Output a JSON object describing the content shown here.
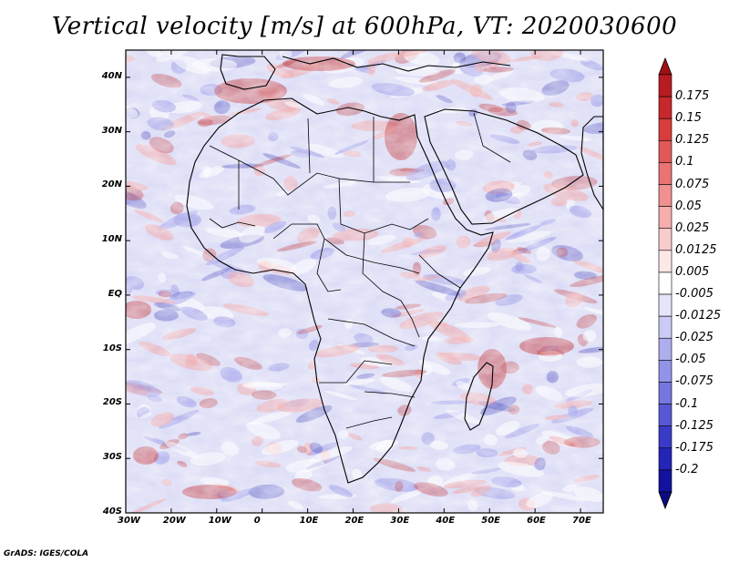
{
  "title": "Vertical velocity [m/s] at 600hPa, VT: 2020030600",
  "credit": "GrADS: IGES/COLA",
  "axes": {
    "lat_labels": [
      "40N",
      "30N",
      "20N",
      "10N",
      "EQ",
      "10S",
      "20S",
      "30S",
      "40S"
    ],
    "lon_labels": [
      "30W",
      "20W",
      "10W",
      "0",
      "10E",
      "20E",
      "30E",
      "40E",
      "50E",
      "60E",
      "70E"
    ],
    "lat_values": [
      40,
      30,
      20,
      10,
      0,
      -10,
      -20,
      -30,
      -40
    ],
    "lon_values": [
      -30,
      -20,
      -10,
      0,
      10,
      20,
      30,
      40,
      50,
      60,
      70
    ],
    "lon_range": [
      -30,
      75
    ],
    "lat_range": [
      -40,
      45
    ]
  },
  "colorbar": {
    "labels": [
      "0.175",
      "0.15",
      "0.125",
      "0.1",
      "0.075",
      "0.05",
      "0.025",
      "0.0125",
      "0.005",
      "-0.005",
      "-0.0125",
      "-0.025",
      "-0.05",
      "-0.075",
      "-0.1",
      "-0.125",
      "-0.175",
      "-0.2"
    ],
    "colors": [
      "#b81c22",
      "#c8282c",
      "#d83c3c",
      "#e25858",
      "#ea7474",
      "#f09090",
      "#f5adad",
      "#f9cccc",
      "#fde8e8",
      "#ffffff",
      "#e4e4fa",
      "#cacaf4",
      "#aeaeee",
      "#9292e8",
      "#7676e0",
      "#5858d6",
      "#3a3ac8",
      "#2424b8",
      "#12129e"
    ],
    "max_color": "#a01015",
    "min_color": "#0c0c80"
  },
  "field_colors": {
    "background": "#dcdcf6",
    "sinking": "#9c9cea",
    "rising": "#f2a8a8",
    "strong_rising": "#c02828",
    "strong_sinking": "#3a3ab8"
  }
}
